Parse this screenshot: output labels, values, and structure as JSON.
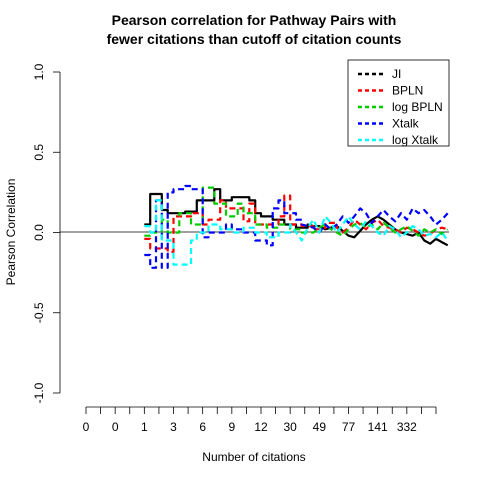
{
  "chart_data": {
    "type": "line",
    "title_lines": [
      "Pearson correlation for Pathway Pairs with",
      "fewer citations than cutoff of citation counts"
    ],
    "xlabel": "Number of citations",
    "ylabel": "Pearson Correlation",
    "ylim": [
      -1.0,
      1.0
    ],
    "y_ticks": [
      {
        "value": -1.0,
        "label": "-1.0"
      },
      {
        "value": -0.5,
        "label": "-0.5"
      },
      {
        "value": 0.0,
        "label": "0.0"
      },
      {
        "value": 0.5,
        "label": "0.5"
      },
      {
        "value": 1.0,
        "label": "1.0"
      }
    ],
    "xlim": [
      0,
      62
    ],
    "x_ticks": [
      {
        "value": 1,
        "label": "0"
      },
      {
        "value": 6,
        "label": "0"
      },
      {
        "value": 11,
        "label": "1"
      },
      {
        "value": 16,
        "label": "3"
      },
      {
        "value": 21,
        "label": "6"
      },
      {
        "value": 26,
        "label": "9"
      },
      {
        "value": 31,
        "label": "12"
      },
      {
        "value": 36,
        "label": "30"
      },
      {
        "value": 41,
        "label": "49"
      },
      {
        "value": 46,
        "label": "77"
      },
      {
        "value": 51,
        "label": "141"
      },
      {
        "value": 56,
        "label": "332"
      }
    ],
    "x_minor_ticks": [
      1,
      3.5,
      6,
      8.5,
      11,
      13.5,
      16,
      18.5,
      21,
      23.5,
      26,
      28.5,
      31,
      33.5,
      36,
      38.5,
      41,
      43.5,
      46,
      48.5,
      51,
      53.5,
      56,
      58.5,
      61
    ],
    "reference_line": 0.0,
    "legend": {
      "position": "top-right"
    },
    "series": [
      {
        "name": "JI",
        "color": "#000000",
        "dash": "none",
        "width": 2.2,
        "points": [
          [
            11,
            0.05
          ],
          [
            12,
            0.05
          ],
          [
            12,
            0.24
          ],
          [
            14,
            0.24
          ],
          [
            14,
            0.14
          ],
          [
            15,
            0.14
          ],
          [
            15,
            0.12
          ],
          [
            18,
            0.12
          ],
          [
            18,
            0.13
          ],
          [
            20,
            0.13
          ],
          [
            20,
            0.2
          ],
          [
            23,
            0.2
          ],
          [
            23,
            0.27
          ],
          [
            24,
            0.27
          ],
          [
            24,
            0.2
          ],
          [
            26,
            0.2
          ],
          [
            26,
            0.22
          ],
          [
            29,
            0.22
          ],
          [
            29,
            0.2
          ],
          [
            30,
            0.2
          ],
          [
            30,
            0.12
          ],
          [
            31,
            0.12
          ],
          [
            31,
            0.1
          ],
          [
            33,
            0.1
          ],
          [
            33,
            0.08
          ],
          [
            35,
            0.08
          ],
          [
            35,
            0.05
          ],
          [
            37,
            0.05
          ],
          [
            37,
            0.03
          ],
          [
            39,
            0.03
          ],
          [
            39,
            0.05
          ],
          [
            40,
            0.04
          ],
          [
            41,
            0.04
          ],
          [
            42,
            0.02
          ],
          [
            43,
            0.03
          ],
          [
            44,
            0.04
          ],
          [
            45,
            0.01
          ],
          [
            46,
            -0.02
          ],
          [
            47,
            -0.03
          ],
          [
            48,
            0.01
          ],
          [
            49,
            0.05
          ],
          [
            50,
            0.08
          ],
          [
            51,
            0.1
          ],
          [
            52,
            0.08
          ],
          [
            53,
            0.05
          ],
          [
            54,
            0.02
          ],
          [
            55,
            0.0
          ],
          [
            56,
            -0.01
          ],
          [
            57,
            -0.02
          ],
          [
            58,
            0.0
          ],
          [
            59,
            -0.05
          ],
          [
            60,
            -0.07
          ],
          [
            61,
            -0.04
          ],
          [
            62,
            -0.06
          ],
          [
            63,
            -0.08
          ]
        ]
      },
      {
        "name": "BPLN",
        "color": "#ff0000",
        "dash": "6,4",
        "width": 2.2,
        "points": [
          [
            11,
            -0.04
          ],
          [
            12,
            -0.04
          ],
          [
            12,
            -0.1
          ],
          [
            15,
            -0.1
          ],
          [
            15,
            -0.12
          ],
          [
            16,
            -0.12
          ],
          [
            16,
            0.1
          ],
          [
            19,
            0.1
          ],
          [
            19,
            0.12
          ],
          [
            21,
            0.12
          ],
          [
            21,
            0.05
          ],
          [
            22,
            0.05
          ],
          [
            22,
            0.08
          ],
          [
            24,
            0.08
          ],
          [
            24,
            0.2
          ],
          [
            25,
            0.2
          ],
          [
            25,
            0.15
          ],
          [
            28,
            0.15
          ],
          [
            28,
            0.07
          ],
          [
            29,
            0.07
          ],
          [
            29,
            0.18
          ],
          [
            30,
            0.18
          ],
          [
            30,
            0.05
          ],
          [
            34,
            0.05
          ],
          [
            34,
            0.1
          ],
          [
            35,
            0.1
          ],
          [
            35,
            0.23
          ],
          [
            36,
            0.23
          ],
          [
            36,
            0.05
          ],
          [
            38,
            0.05
          ],
          [
            38,
            0.04
          ],
          [
            40,
            0.04
          ],
          [
            40,
            0.02
          ],
          [
            42,
            0.02
          ],
          [
            42,
            0.06
          ],
          [
            44,
            0.06
          ],
          [
            44,
            0.03
          ],
          [
            45,
            0.0
          ],
          [
            46,
            0.03
          ],
          [
            47,
            0.08
          ],
          [
            48,
            0.05
          ],
          [
            49,
            0.02
          ],
          [
            50,
            0.06
          ],
          [
            51,
            0.08
          ],
          [
            52,
            0.04
          ],
          [
            53,
            0.03
          ],
          [
            54,
            0.02
          ],
          [
            55,
            0.0
          ],
          [
            56,
            0.03
          ],
          [
            57,
            0.02
          ],
          [
            58,
            0.0
          ],
          [
            59,
            -0.02
          ],
          [
            60,
            -0.01
          ],
          [
            61,
            0.02
          ],
          [
            62,
            0.03
          ],
          [
            63,
            0.02
          ]
        ]
      },
      {
        "name": "log BPLN",
        "color": "#00cc00",
        "dash": "6,4",
        "width": 2.2,
        "points": [
          [
            11,
            -0.02
          ],
          [
            12,
            -0.02
          ],
          [
            12,
            0.0
          ],
          [
            14,
            0.0
          ],
          [
            14,
            0.08
          ],
          [
            15,
            0.08
          ],
          [
            15,
            0.0
          ],
          [
            17,
            0.0
          ],
          [
            17,
            0.12
          ],
          [
            19,
            0.12
          ],
          [
            19,
            0.05
          ],
          [
            21,
            0.05
          ],
          [
            21,
            0.28
          ],
          [
            23,
            0.28
          ],
          [
            23,
            0.18
          ],
          [
            25,
            0.18
          ],
          [
            25,
            0.1
          ],
          [
            27,
            0.1
          ],
          [
            27,
            0.18
          ],
          [
            28,
            0.18
          ],
          [
            28,
            0.12
          ],
          [
            30,
            0.12
          ],
          [
            30,
            0.05
          ],
          [
            32,
            0.05
          ],
          [
            32,
            0.03
          ],
          [
            34,
            0.03
          ],
          [
            34,
            0.05
          ],
          [
            36,
            0.05
          ],
          [
            36,
            0.02
          ],
          [
            38,
            0.02
          ],
          [
            38,
            0.0
          ],
          [
            40,
            0.0
          ],
          [
            41,
            0.03
          ],
          [
            42,
            0.05
          ],
          [
            43,
            0.02
          ],
          [
            44,
            0.0
          ],
          [
            45,
            -0.02
          ],
          [
            46,
            0.02
          ],
          [
            47,
            0.05
          ],
          [
            48,
            0.06
          ],
          [
            49,
            0.03
          ],
          [
            50,
            0.05
          ],
          [
            51,
            0.02
          ],
          [
            52,
            0.06
          ],
          [
            53,
            0.03
          ],
          [
            54,
            0.0
          ],
          [
            55,
            0.02
          ],
          [
            56,
            0.04
          ],
          [
            57,
            0.01
          ],
          [
            58,
            -0.02
          ],
          [
            59,
            0.02
          ],
          [
            60,
            0.0
          ],
          [
            61,
            0.02
          ],
          [
            62,
            -0.01
          ],
          [
            63,
            0.02
          ]
        ]
      },
      {
        "name": "Xtalk",
        "color": "#0000ff",
        "dash": "6,4",
        "width": 2.2,
        "points": [
          [
            11,
            -0.14
          ],
          [
            12,
            -0.14
          ],
          [
            12,
            -0.22
          ],
          [
            13,
            -0.22
          ],
          [
            13,
            0.2
          ],
          [
            14,
            0.2
          ],
          [
            14,
            -0.22
          ],
          [
            15,
            -0.22
          ],
          [
            15,
            0.25
          ],
          [
            16,
            0.25
          ],
          [
            16,
            0.27
          ],
          [
            18,
            0.27
          ],
          [
            18,
            0.29
          ],
          [
            19,
            0.29
          ],
          [
            19,
            0.27
          ],
          [
            21,
            0.27
          ],
          [
            21,
            -0.03
          ],
          [
            22,
            -0.03
          ],
          [
            22,
            0.0
          ],
          [
            25,
            0.0
          ],
          [
            25,
            0.05
          ],
          [
            26,
            0.05
          ],
          [
            26,
            0.02
          ],
          [
            28,
            0.02
          ],
          [
            28,
            0.0
          ],
          [
            30,
            0.0
          ],
          [
            30,
            -0.05
          ],
          [
            32,
            -0.05
          ],
          [
            32,
            -0.08
          ],
          [
            33,
            -0.08
          ],
          [
            33,
            0.15
          ],
          [
            34,
            0.15
          ],
          [
            34,
            0.2
          ],
          [
            35,
            0.2
          ],
          [
            35,
            0.12
          ],
          [
            37,
            0.12
          ],
          [
            37,
            0.08
          ],
          [
            38,
            0.08
          ],
          [
            38,
            0.05
          ],
          [
            40,
            0.03
          ],
          [
            41,
            0.0
          ],
          [
            42,
            0.05
          ],
          [
            43,
            0.02
          ],
          [
            44,
            0.05
          ],
          [
            45,
            0.1
          ],
          [
            46,
            0.06
          ],
          [
            47,
            0.1
          ],
          [
            48,
            0.15
          ],
          [
            49,
            0.12
          ],
          [
            50,
            0.06
          ],
          [
            51,
            0.1
          ],
          [
            52,
            0.14
          ],
          [
            53,
            0.1
          ],
          [
            54,
            0.07
          ],
          [
            55,
            0.12
          ],
          [
            56,
            0.08
          ],
          [
            57,
            0.15
          ],
          [
            58,
            0.12
          ],
          [
            59,
            0.14
          ],
          [
            60,
            0.1
          ],
          [
            61,
            0.05
          ],
          [
            62,
            0.08
          ],
          [
            63,
            0.12
          ]
        ]
      },
      {
        "name": "log Xtalk",
        "color": "#00ffff",
        "dash": "6,4",
        "width": 2.2,
        "points": [
          [
            11,
            0.04
          ],
          [
            12,
            0.04
          ],
          [
            12,
            0.0
          ],
          [
            13,
            0.0
          ],
          [
            13,
            0.2
          ],
          [
            14,
            0.2
          ],
          [
            14,
            -0.05
          ],
          [
            16,
            -0.05
          ],
          [
            16,
            -0.2
          ],
          [
            19,
            -0.2
          ],
          [
            19,
            -0.05
          ],
          [
            20,
            -0.05
          ],
          [
            20,
            0.0
          ],
          [
            22,
            0.0
          ],
          [
            22,
            0.05
          ],
          [
            24,
            0.05
          ],
          [
            24,
            0.02
          ],
          [
            26,
            0.02
          ],
          [
            26,
            0.0
          ],
          [
            28,
            0.0
          ],
          [
            28,
            0.03
          ],
          [
            30,
            0.03
          ],
          [
            30,
            0.0
          ],
          [
            32,
            0.0
          ],
          [
            32,
            -0.03
          ],
          [
            34,
            -0.03
          ],
          [
            34,
            0.0
          ],
          [
            36,
            0.0
          ],
          [
            36,
            0.05
          ],
          [
            37,
            0.0
          ],
          [
            38,
            -0.05
          ],
          [
            39,
            0.03
          ],
          [
            40,
            0.08
          ],
          [
            41,
            0.0
          ],
          [
            42,
            0.1
          ],
          [
            43,
            0.06
          ],
          [
            44,
            0.0
          ],
          [
            45,
            0.05
          ],
          [
            46,
            0.1
          ],
          [
            47,
            0.05
          ],
          [
            48,
            0.02
          ],
          [
            49,
            0.07
          ],
          [
            50,
            0.04
          ],
          [
            51,
            0.0
          ],
          [
            52,
            -0.02
          ],
          [
            53,
            0.04
          ],
          [
            54,
            0.02
          ],
          [
            55,
            -0.03
          ],
          [
            56,
            0.0
          ],
          [
            57,
            0.04
          ],
          [
            58,
            0.02
          ],
          [
            59,
            -0.02
          ],
          [
            60,
            -0.01
          ],
          [
            61,
            -0.03
          ],
          [
            62,
            0.0
          ],
          [
            63,
            -0.05
          ]
        ]
      }
    ]
  }
}
